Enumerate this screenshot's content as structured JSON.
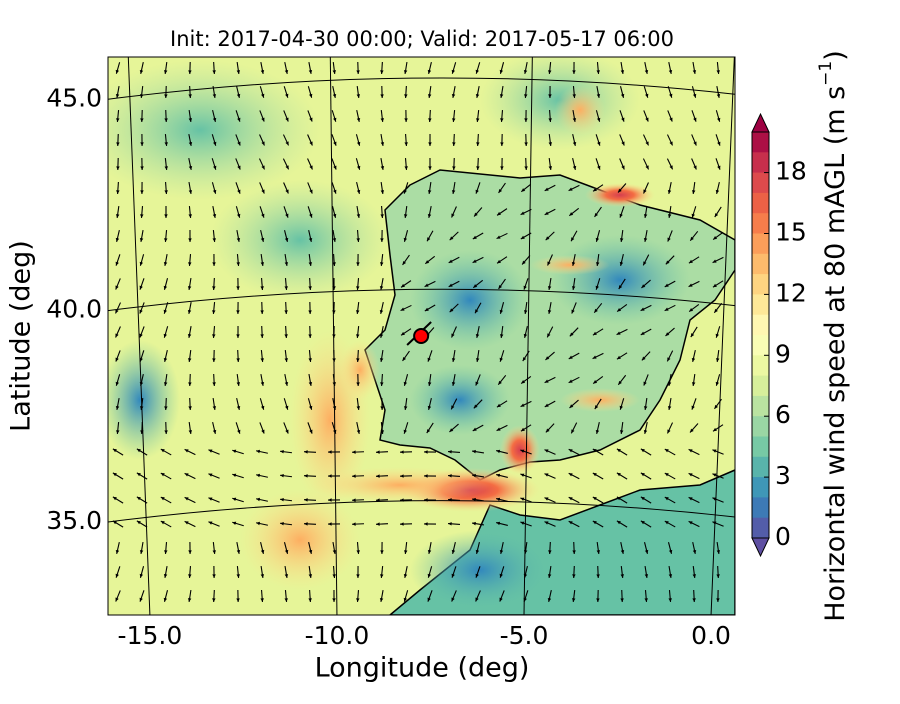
{
  "chart_data": {
    "type": "map",
    "title": "Init: 2017-04-30 00:00; Valid: 2017-05-17 06:00",
    "x_label": "Longitude (deg)",
    "y_label": "Latitude (deg)",
    "xlim": [
      -16.12,
      0.64
    ],
    "ylim": [
      32.8,
      46.0
    ],
    "xticks": [
      {
        "value": -15,
        "label": "-15.0"
      },
      {
        "value": -10,
        "label": "-10.0"
      },
      {
        "value": -5,
        "label": "-5.0"
      },
      {
        "value": 0,
        "label": "0.0"
      }
    ],
    "yticks": [
      {
        "value": 35,
        "label": "35.0"
      },
      {
        "value": 40,
        "label": "40.0"
      },
      {
        "value": 45,
        "label": "45.0"
      }
    ],
    "grid": true,
    "points": {
      "x": [
        -7.75
      ],
      "y": [
        39.4
      ],
      "color": "#ff0000"
    },
    "colorbar": {
      "label": "Horizontal wind speed at 80 mAGL (m s",
      "label_exponent": "−1",
      "label_suffix": ")",
      "clim": [
        0,
        20
      ],
      "ticks": [
        0,
        3,
        6,
        9,
        12,
        15,
        18
      ],
      "colors": [
        "#5e4fa2",
        "#3288bd",
        "#66c2a5",
        "#abdda4",
        "#e6f598",
        "#ffffbf",
        "#fee08b",
        "#fdae61",
        "#f46d43",
        "#d53e4f",
        "#9e0142"
      ]
    }
  }
}
